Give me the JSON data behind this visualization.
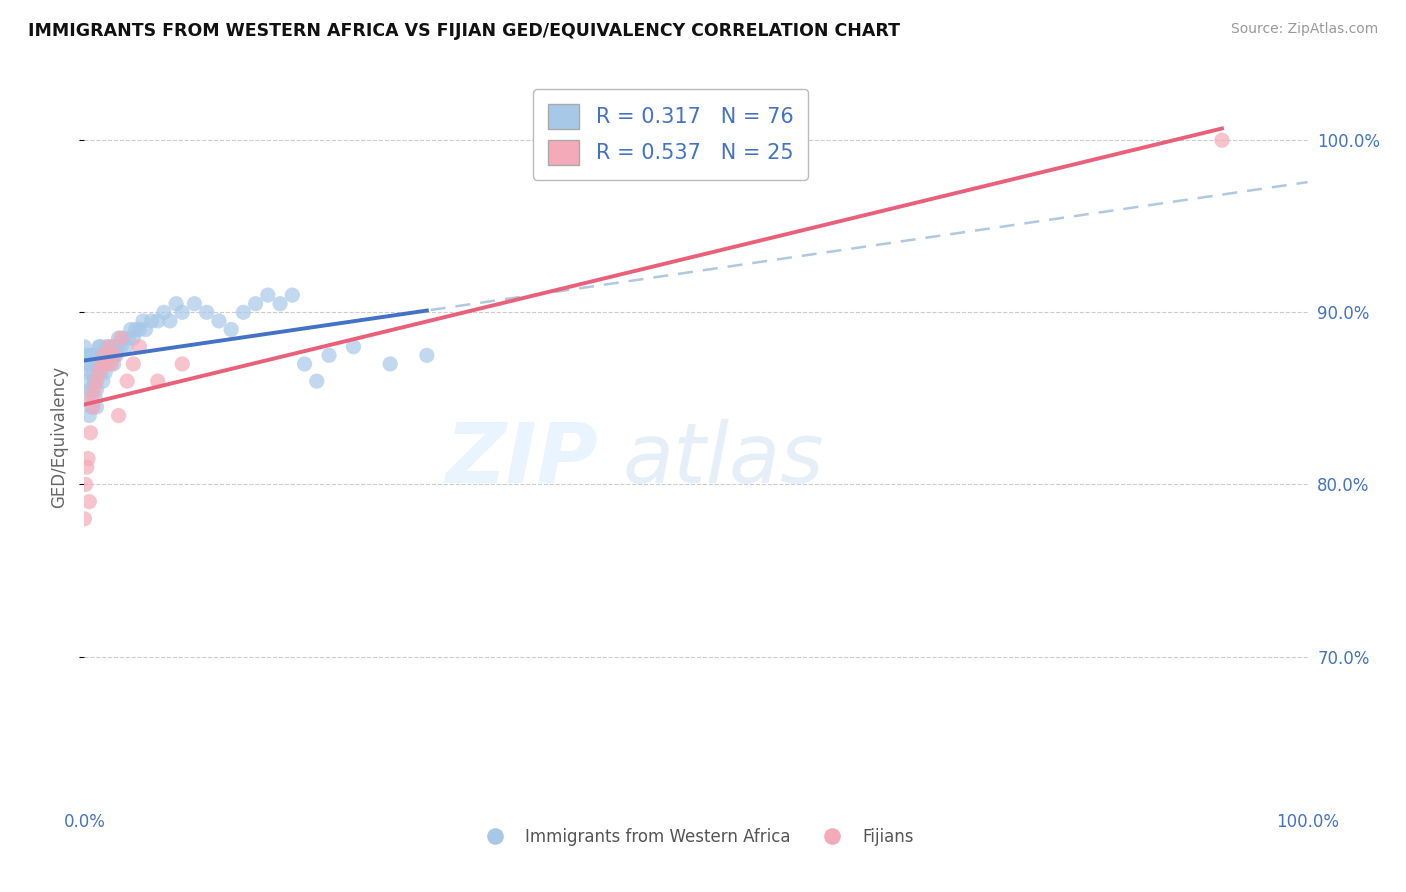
{
  "title": "IMMIGRANTS FROM WESTERN AFRICA VS FIJIAN GED/EQUIVALENCY CORRELATION CHART",
  "source": "Source: ZipAtlas.com",
  "ylabel": "GED/Equivalency",
  "yticks": [
    "70.0%",
    "80.0%",
    "90.0%",
    "100.0%"
  ],
  "ytick_vals": [
    0.7,
    0.8,
    0.9,
    1.0
  ],
  "xlim": [
    0.0,
    1.0
  ],
  "ylim": [
    0.615,
    1.04
  ],
  "legend1_r": "0.317",
  "legend1_n": "76",
  "legend2_r": "0.537",
  "legend2_n": "25",
  "blue_color": "#a8c8e8",
  "pink_color": "#f4aab8",
  "blue_line_color": "#4472c4",
  "pink_line_color": "#e8607a",
  "dashed_line_color": "#b0c8e0",
  "watermark_zip": "ZIP",
  "watermark_atlas": "atlas",
  "legend_label_blue": "Immigrants from Western Africa",
  "legend_label_pink": "Fijians",
  "blue_x": [
    0.0,
    0.0,
    0.002,
    0.002,
    0.003,
    0.004,
    0.004,
    0.005,
    0.005,
    0.005,
    0.006,
    0.006,
    0.007,
    0.007,
    0.008,
    0.008,
    0.009,
    0.009,
    0.01,
    0.01,
    0.01,
    0.011,
    0.011,
    0.012,
    0.012,
    0.013,
    0.013,
    0.014,
    0.014,
    0.015,
    0.015,
    0.016,
    0.017,
    0.018,
    0.018,
    0.019,
    0.02,
    0.021,
    0.022,
    0.023,
    0.024,
    0.025,
    0.026,
    0.027,
    0.028,
    0.03,
    0.032,
    0.034,
    0.036,
    0.038,
    0.04,
    0.042,
    0.045,
    0.048,
    0.05,
    0.055,
    0.06,
    0.065,
    0.07,
    0.075,
    0.08,
    0.09,
    0.1,
    0.11,
    0.12,
    0.13,
    0.14,
    0.15,
    0.16,
    0.17,
    0.18,
    0.19,
    0.2,
    0.22,
    0.25,
    0.28
  ],
  "blue_y": [
    0.87,
    0.88,
    0.86,
    0.875,
    0.85,
    0.84,
    0.865,
    0.855,
    0.87,
    0.875,
    0.845,
    0.855,
    0.865,
    0.875,
    0.86,
    0.87,
    0.85,
    0.86,
    0.845,
    0.855,
    0.875,
    0.865,
    0.875,
    0.87,
    0.88,
    0.87,
    0.88,
    0.865,
    0.875,
    0.86,
    0.875,
    0.87,
    0.865,
    0.87,
    0.88,
    0.875,
    0.87,
    0.875,
    0.88,
    0.875,
    0.87,
    0.88,
    0.875,
    0.88,
    0.885,
    0.88,
    0.885,
    0.88,
    0.885,
    0.89,
    0.885,
    0.89,
    0.89,
    0.895,
    0.89,
    0.895,
    0.895,
    0.9,
    0.895,
    0.905,
    0.9,
    0.905,
    0.9,
    0.895,
    0.89,
    0.9,
    0.905,
    0.91,
    0.905,
    0.91,
    0.87,
    0.86,
    0.875,
    0.88,
    0.87,
    0.875
  ],
  "pink_x": [
    0.0,
    0.001,
    0.002,
    0.003,
    0.004,
    0.005,
    0.006,
    0.007,
    0.008,
    0.01,
    0.012,
    0.014,
    0.016,
    0.018,
    0.02,
    0.022,
    0.025,
    0.028,
    0.03,
    0.035,
    0.04,
    0.045,
    0.06,
    0.08,
    0.93
  ],
  "pink_y": [
    0.78,
    0.8,
    0.81,
    0.815,
    0.79,
    0.83,
    0.85,
    0.845,
    0.855,
    0.86,
    0.865,
    0.87,
    0.875,
    0.87,
    0.88,
    0.87,
    0.875,
    0.84,
    0.885,
    0.86,
    0.87,
    0.88,
    0.86,
    0.87,
    1.0
  ]
}
